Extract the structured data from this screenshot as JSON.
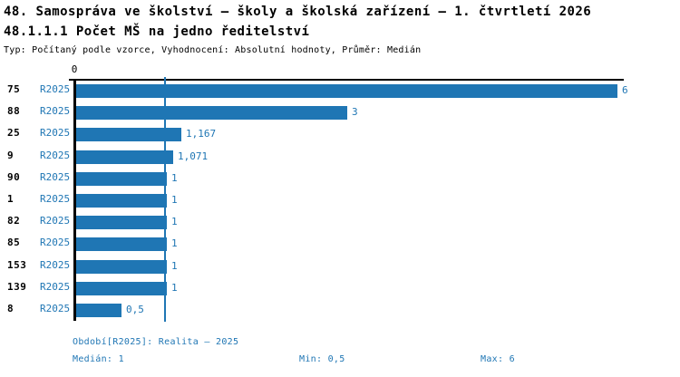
{
  "header": {
    "title": "48. Samospráva ve školství – školy a školská zařízení – 1. čtvrtletí 2026",
    "subtitle": "48.1.1.1 Počet MŠ na jedno ředitelství",
    "meta": "Typ: Počítaný podle vzorce, Vyhodnocení: Absolutní hodnoty, Průměr: Medián"
  },
  "chart_data": {
    "type": "bar",
    "orientation": "horizontal",
    "title": "48.1.1.1 Počet MŠ na jedno ředitelství",
    "axis": {
      "origin_label": "0",
      "xlim": [
        0,
        6.1
      ],
      "position": "top",
      "grid": false
    },
    "median_value": 1,
    "series_name": "R2025",
    "legend_position": "none",
    "rows": [
      {
        "category": "75",
        "series": "R2025",
        "value": 6,
        "label": "6"
      },
      {
        "category": "88",
        "series": "R2025",
        "value": 3,
        "label": "3"
      },
      {
        "category": "25",
        "series": "R2025",
        "value": 1.167,
        "label": "1,167"
      },
      {
        "category": "9",
        "series": "R2025",
        "value": 1.071,
        "label": "1,071"
      },
      {
        "category": "90",
        "series": "R2025",
        "value": 1,
        "label": "1"
      },
      {
        "category": "1",
        "series": "R2025",
        "value": 1,
        "label": "1"
      },
      {
        "category": "82",
        "series": "R2025",
        "value": 1,
        "label": "1"
      },
      {
        "category": "85",
        "series": "R2025",
        "value": 1,
        "label": "1"
      },
      {
        "category": "153",
        "series": "R2025",
        "value": 1,
        "label": "1"
      },
      {
        "category": "139",
        "series": "R2025",
        "value": 1,
        "label": "1"
      },
      {
        "category": "8",
        "series": "R2025",
        "value": 0.5,
        "label": "0,5"
      }
    ]
  },
  "footer": {
    "period": "Období[R2025]: Realita – 2025",
    "median": "Medián: 1",
    "min": "Min: 0,5",
    "max": "Max: 6"
  },
  "colors": {
    "accent": "#1f76b4",
    "text": "#000000",
    "background": "#ffffff"
  }
}
